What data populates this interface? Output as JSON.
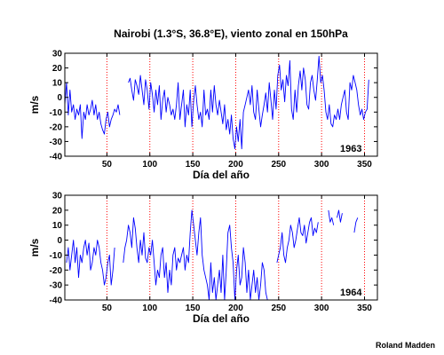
{
  "title": "Nairobi (1.3°S, 36.8°E), viento zonal en 150hPa",
  "credit": "Roland Madden",
  "colors": {
    "series": "#0000ff",
    "marker": "#ff0000",
    "axis": "#000000"
  },
  "chart_data": [
    {
      "type": "line",
      "year_label": "1963",
      "xlabel": "Día del año",
      "ylabel": "m/s",
      "xlim": [
        1,
        365
      ],
      "ylim": [
        -40,
        30
      ],
      "xticks": [
        50,
        100,
        150,
        200,
        250,
        300,
        350
      ],
      "yticks": [
        30,
        20,
        10,
        0,
        -10,
        -20,
        -30,
        -40
      ],
      "marker_lines_x": [
        50,
        100,
        150,
        200,
        250,
        300,
        350
      ],
      "series": [
        {
          "segments": [
            {
              "x": [
                1,
                3,
                5,
                7,
                9,
                11,
                13,
                15,
                17,
                19,
                21,
                23,
                25,
                27,
                29,
                31,
                33,
                35,
                37,
                39,
                41,
                43,
                45,
                47,
                49,
                51,
                53,
                55,
                57,
                59,
                61,
                63,
                65
              ],
              "y": [
                -5,
                10,
                -12,
                5,
                -10,
                -5,
                -15,
                -8,
                -12,
                -5,
                -28,
                -10,
                -15,
                -5,
                -12,
                -8,
                -2,
                -12,
                -5,
                -15,
                -10,
                -18,
                -22,
                -25,
                -15,
                -10,
                -20,
                -15,
                -12,
                -8,
                -10,
                -5,
                -12
              ]
            },
            {
              "x": [
                75,
                77,
                79,
                81,
                83,
                85,
                87,
                89,
                91,
                93,
                95,
                97,
                99,
                101,
                103,
                105,
                107,
                109,
                111,
                113,
                115,
                117,
                119,
                121,
                123,
                125,
                127,
                129,
                131,
                133,
                135,
                137,
                139,
                141,
                143,
                145,
                147,
                149,
                151,
                153,
                155,
                157,
                159,
                161,
                163,
                165,
                167,
                169,
                171,
                173,
                175,
                177,
                179,
                181,
                183,
                185,
                187,
                189,
                191,
                193,
                195,
                197,
                199,
                201,
                203,
                205,
                207,
                209,
                211,
                213,
                215,
                217,
                219,
                221,
                223,
                225,
                227,
                229,
                231,
                233,
                235,
                237,
                239,
                241,
                243,
                245,
                247,
                249,
                251,
                253,
                255,
                257,
                259,
                261,
                263,
                265,
                267,
                269,
                271,
                273,
                275,
                277,
                279,
                281,
                283,
                285,
                287,
                289,
                291,
                293,
                295,
                297,
                299,
                301,
                303,
                305,
                307,
                309,
                311,
                313,
                315,
                317,
                319,
                321,
                323,
                325,
                327,
                329,
                331,
                333,
                335,
                337,
                339,
                341,
                343,
                345,
                347,
                349,
                351,
                353,
                355
              ],
              "y": [
                10,
                13,
                5,
                -2,
                12,
                8,
                2,
                15,
                5,
                -5,
                12,
                5,
                -8,
                10,
                2,
                -10,
                5,
                -5,
                8,
                -15,
                -2,
                5,
                -10,
                0,
                -5,
                -12,
                -8,
                -15,
                -5,
                10,
                -15,
                -5,
                5,
                -20,
                -5,
                -12,
                5,
                -20,
                -2,
                8,
                -5,
                -15,
                -10,
                -20,
                5,
                -12,
                -8,
                -15,
                5,
                -10,
                8,
                -5,
                -12,
                -2,
                -10,
                -18,
                -5,
                -22,
                -15,
                -25,
                -12,
                -28,
                -35,
                -20,
                -30,
                -15,
                -35,
                -10,
                -5,
                0,
                5,
                -5,
                8,
                -10,
                -15,
                5,
                -8,
                -20,
                -12,
                -5,
                3,
                -10,
                10,
                -2,
                -15,
                5,
                -8,
                15,
                22,
                5,
                12,
                -3,
                15,
                8,
                25,
                -8,
                -15,
                5,
                -10,
                8,
                18,
                5,
                20,
                12,
                -5,
                -8,
                10,
                15,
                5,
                -2,
                12,
                28,
                10,
                15,
                5,
                -10,
                -15,
                -5,
                -18,
                -20,
                -12,
                -15,
                -8,
                -15,
                -5,
                0,
                5,
                -10,
                -15,
                10,
                5,
                15,
                10,
                5,
                -5,
                -12,
                -8,
                -15,
                -10,
                -8,
                12
              ]
            }
          ]
        }
      ]
    },
    {
      "type": "line",
      "year_label": "1964",
      "xlabel": "Día del año",
      "ylabel": "m/s",
      "xlim": [
        1,
        365
      ],
      "ylim": [
        -40,
        30
      ],
      "xticks": [
        50,
        100,
        150,
        200,
        250,
        300,
        350
      ],
      "yticks": [
        30,
        20,
        10,
        0,
        -10,
        -20,
        -30,
        -40
      ],
      "marker_lines_x": [
        50,
        100,
        150,
        200,
        250,
        300,
        350
      ],
      "series": [
        {
          "segments": [
            {
              "x": [
                3,
                5,
                7,
                9,
                11,
                13,
                15,
                17,
                19,
                21,
                23,
                25,
                27,
                29,
                31,
                33,
                35,
                37,
                39,
                41,
                43,
                45,
                47,
                49,
                51,
                53,
                55,
                57,
                59
              ],
              "y": [
                -15,
                -5,
                -20,
                -10,
                0,
                -15,
                -5,
                -25,
                -10,
                -15,
                -5,
                0,
                -10,
                -2,
                -20,
                -15,
                -5,
                -10,
                0,
                -5,
                -15,
                -20,
                -30,
                -25,
                -15,
                -10,
                -30,
                -20,
                -5
              ]
            },
            {
              "x": [
                69,
                71,
                73,
                75,
                77,
                79,
                81,
                83,
                85,
                87,
                89,
                91,
                93,
                95,
                97,
                99,
                101,
                103,
                105,
                107,
                109,
                111,
                113,
                115,
                117,
                119,
                121,
                123,
                125,
                127,
                129,
                131,
                133,
                135,
                137,
                139,
                141,
                143,
                145,
                147,
                149,
                151,
                153,
                155,
                157,
                159,
                161,
                163,
                165,
                167,
                169,
                171,
                173,
                175,
                177,
                179,
                181,
                183,
                185,
                187,
                189,
                191,
                193,
                195,
                197,
                199,
                201,
                203,
                205,
                207,
                209,
                211,
                213,
                215,
                217,
                219,
                221,
                223,
                225,
                227,
                229,
                231,
                233,
                235,
                237
              ],
              "y": [
                -15,
                -5,
                0,
                10,
                5,
                -5,
                15,
                8,
                -5,
                -15,
                0,
                -10,
                5,
                -12,
                -15,
                -5,
                -10,
                0,
                -15,
                -30,
                -20,
                -25,
                -10,
                -5,
                -25,
                -15,
                -35,
                -20,
                -30,
                -10,
                -5,
                -20,
                -12,
                -15,
                -10,
                -5,
                -20,
                -10,
                -15,
                5,
                20,
                10,
                0,
                -10,
                5,
                15,
                -10,
                -20,
                -25,
                -30,
                -40,
                -15,
                -35,
                -25,
                -40,
                -30,
                -20,
                -35,
                -10,
                -40,
                -20,
                5,
                10,
                -5,
                -15,
                -40,
                -20,
                -10,
                -30,
                -25,
                -5,
                -15,
                -35,
                -20,
                -40,
                -30,
                -20,
                -35,
                -25,
                -40,
                -30,
                -15,
                -20,
                -35,
                -40
              ]
            },
            {
              "x": [
                248,
                250,
                252,
                254,
                256,
                258,
                260,
                262,
                264,
                266,
                268,
                270,
                272,
                274,
                276,
                278,
                280,
                282,
                284,
                286,
                288,
                290,
                292,
                294,
                296
              ],
              "y": [
                -15,
                -10,
                -5,
                5,
                -10,
                -15,
                -5,
                0,
                10,
                5,
                -5,
                0,
                8,
                15,
                5,
                3,
                10,
                -2,
                5,
                12,
                15,
                3,
                8,
                5,
                12
              ]
            },
            {
              "x": [
                308,
                310,
                312,
                314
              ],
              "y": [
                20,
                12,
                15,
                10
              ]
            },
            {
              "x": [
                318,
                320,
                322,
                324
              ],
              "y": [
                15,
                20,
                12,
                18
              ]
            },
            {
              "x": [
                338,
                340,
                342
              ],
              "y": [
                5,
                12,
                15
              ]
            }
          ]
        }
      ]
    }
  ]
}
